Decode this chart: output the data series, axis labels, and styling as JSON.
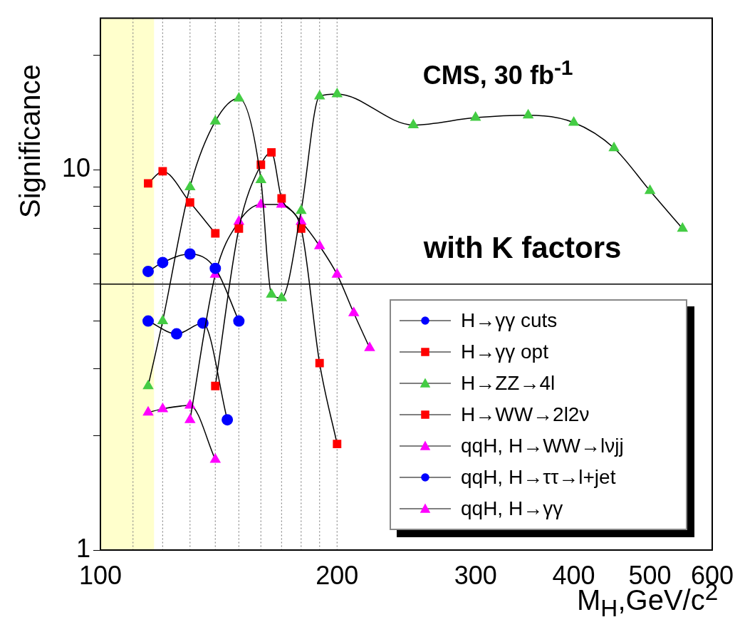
{
  "chart_data": {
    "type": "line",
    "xlabel": "M$_{H}$,GeV/c$^{2}$",
    "ylabel": "Significance",
    "annotations": [
      "CMS, 30 fb$^{-1}$",
      "with K factors"
    ],
    "log": "xy",
    "grid": false,
    "legend": "bottom right",
    "line_style": "solid",
    "xlim": [
      100,
      600
    ],
    "xticks": [
      100,
      200,
      300,
      400,
      500,
      600
    ],
    "ylim": [
      1,
      25
    ],
    "yticks": [
      1,
      {
        "value": 2,
        "label": null
      },
      {
        "value": 3,
        "label": null
      },
      {
        "value": 4,
        "label": null
      },
      {
        "value": 5,
        "label": null
      },
      {
        "value": 6,
        "label": null
      },
      {
        "value": 7,
        "label": null
      },
      {
        "value": 8,
        "label": null
      },
      {
        "value": 9,
        "label": null
      },
      10,
      {
        "value": 20,
        "label": null
      }
    ],
    "bands": [
      {
        "axis": "x",
        "from": 100,
        "to": 117,
        "color": "#ffffcc"
      }
    ],
    "ref_lines": [
      {
        "axis": "y",
        "value": 5,
        "color": "#000000",
        "line_style": "solid"
      },
      {
        "axis": "x",
        "value": 110,
        "color": "#888888",
        "line_style": "dotted"
      },
      {
        "axis": "x",
        "value": 120,
        "color": "#888888",
        "line_style": "dotted"
      },
      {
        "axis": "x",
        "value": 130,
        "color": "#888888",
        "line_style": "dotted"
      },
      {
        "axis": "x",
        "value": 140,
        "color": "#888888",
        "line_style": "dotted"
      },
      {
        "axis": "x",
        "value": 150,
        "color": "#888888",
        "line_style": "dotted"
      },
      {
        "axis": "x",
        "value": 160,
        "color": "#888888",
        "line_style": "dotted"
      },
      {
        "axis": "x",
        "value": 170,
        "color": "#888888",
        "line_style": "dotted"
      },
      {
        "axis": "x",
        "value": 180,
        "color": "#888888",
        "line_style": "dotted"
      },
      {
        "axis": "x",
        "value": 190,
        "color": "#888888",
        "line_style": "dotted"
      },
      {
        "axis": "x",
        "value": 200,
        "color": "#888888",
        "line_style": "dotted"
      }
    ],
    "series": [
      {
        "name": "H→γγ cuts",
        "color": "#0000ff",
        "marker": "circle",
        "x": [
          115,
          120,
          130,
          140,
          150
        ],
        "values": [
          5.4,
          5.7,
          6.0,
          5.5,
          4.0
        ]
      },
      {
        "name": "H→γγ opt",
        "color": "#ff0000",
        "marker": "square",
        "x": [
          115,
          120,
          130,
          140
        ],
        "values": [
          9.2,
          9.9,
          8.2,
          6.8
        ]
      },
      {
        "name": "H→ZZ→4l",
        "color": "#44cc44",
        "marker": "triangle",
        "x": [
          115,
          120,
          130,
          140,
          150,
          160,
          165,
          170,
          180,
          190,
          200,
          250,
          300,
          350,
          400,
          450,
          500,
          550
        ],
        "values": [
          2.7,
          4.0,
          9.0,
          13.4,
          15.4,
          9.4,
          4.7,
          4.6,
          7.8,
          15.6,
          15.8,
          13.1,
          13.7,
          13.9,
          13.3,
          11.4,
          8.8,
          7.0
        ]
      },
      {
        "name": "H→WW→2l2ν",
        "color": "#ff0000",
        "marker": "square",
        "x": [
          140,
          150,
          160,
          165,
          170,
          180,
          190,
          200
        ],
        "values": [
          2.7,
          7.0,
          10.3,
          11.1,
          8.4,
          7.0,
          3.1,
          1.9
        ]
      },
      {
        "name": "qqH, H→WW→lνjj",
        "color": "#ff00ff",
        "marker": "triangle",
        "x": [
          130,
          140,
          150,
          160,
          170,
          180,
          190,
          200,
          210,
          220
        ],
        "values": [
          2.2,
          5.3,
          7.3,
          8.1,
          8.1,
          7.3,
          6.3,
          5.3,
          4.2,
          3.4
        ]
      },
      {
        "name": "qqH, H→ττ→l+jet",
        "color": "#0000ff",
        "marker": "circle",
        "x": [
          115,
          125,
          135,
          145
        ],
        "values": [
          4.0,
          3.7,
          3.95,
          2.2
        ]
      },
      {
        "name": "qqH, H→γγ",
        "color": "#ff00ff",
        "marker": "triangle",
        "x": [
          115,
          120,
          130,
          140
        ],
        "values": [
          2.3,
          2.35,
          2.4,
          1.73
        ]
      }
    ]
  }
}
